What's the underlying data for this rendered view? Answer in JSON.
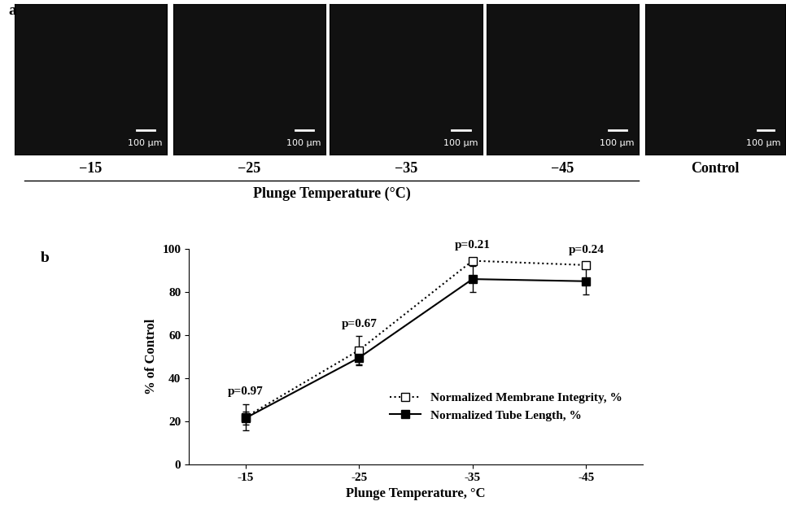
{
  "panel_a": {
    "label": "a",
    "images": [
      {
        "caption": "−15",
        "scale_bar": "100 µm"
      },
      {
        "caption": "−25",
        "scale_bar": "100 µm"
      },
      {
        "caption": "−35",
        "scale_bar": "100 µm"
      },
      {
        "caption": "−45",
        "scale_bar": "100 µm"
      },
      {
        "caption": "Control",
        "scale_bar": "100 µm"
      }
    ],
    "group_label": "Plunge Temperature (°C)"
  },
  "chart_data": {
    "type": "line",
    "panel_label": "b",
    "x_label": "Plunge Temperature, °C",
    "y_label": "% of Control",
    "x": [
      -15,
      -25,
      -35,
      -45
    ],
    "xlim": [
      -10,
      -50
    ],
    "xticks": [
      -15,
      -25,
      -35,
      -45
    ],
    "ylim": [
      0,
      100
    ],
    "yticks": [
      0,
      20,
      40,
      60,
      80,
      100
    ],
    "series": [
      {
        "name": "Normalized Membrane Integrity, %",
        "color": "#000000",
        "marker": "square_open",
        "line_style": "dotted",
        "values": [
          22,
          53,
          94.5,
          92.5
        ],
        "errors": [
          6,
          6.5,
          1.5,
          1.5
        ]
      },
      {
        "name": "Normalized Tube Length, %",
        "color": "#000000",
        "marker": "square",
        "line_style": "solid",
        "values": [
          21.5,
          49.5,
          86,
          85
        ],
        "errors": [
          3,
          3.5,
          6,
          6
        ]
      }
    ],
    "annotations": [
      {
        "x": -15,
        "text": "p=0.97"
      },
      {
        "x": -25,
        "text": "p=0.67"
      },
      {
        "x": -35,
        "text": "p=0.21"
      },
      {
        "x": -45,
        "text": "p=0.24"
      }
    ],
    "legend": "lower right",
    "grid": false
  }
}
